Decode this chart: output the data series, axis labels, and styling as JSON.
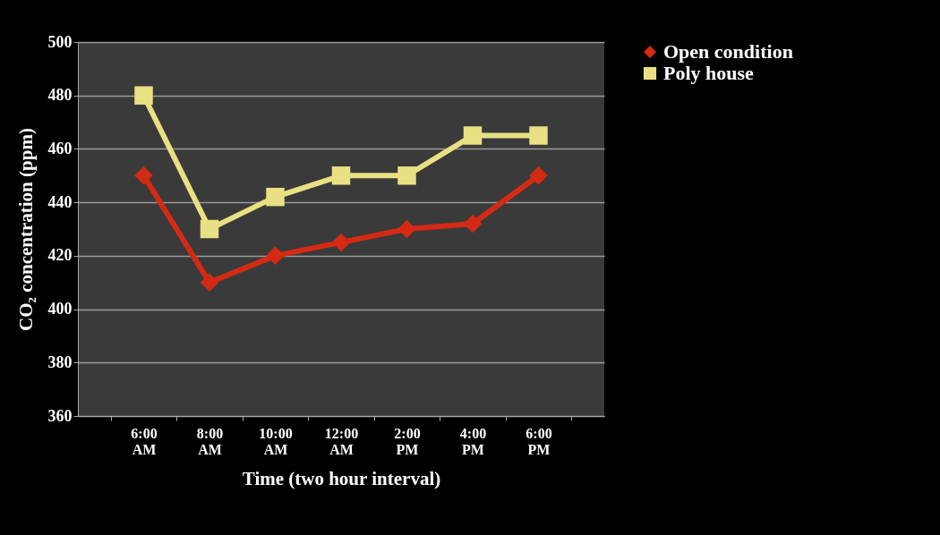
{
  "chart_data": {
    "type": "line",
    "xlabel": "Time (two hour interval)",
    "ylabel": "CO₂ concentration (ppm)",
    "categories": [
      "6:00 AM",
      "8:00 AM",
      "10:00 AM",
      "12:00 AM",
      "2:00 PM",
      "4:00 PM",
      "6:00 PM"
    ],
    "series": [
      {
        "name": "Open condition",
        "color": "#d42a14",
        "marker": "diamond",
        "values": [
          450,
          410,
          420,
          425,
          430,
          432,
          450
        ]
      },
      {
        "name": "Poly house",
        "color": "#e8e083",
        "marker": "square",
        "values": [
          480,
          430,
          442,
          450,
          450,
          465,
          465
        ]
      }
    ],
    "ylim": [
      360,
      500
    ],
    "yticks": [
      360,
      380,
      400,
      420,
      440,
      460,
      480,
      500
    ],
    "grid": "y",
    "legend": "right"
  }
}
